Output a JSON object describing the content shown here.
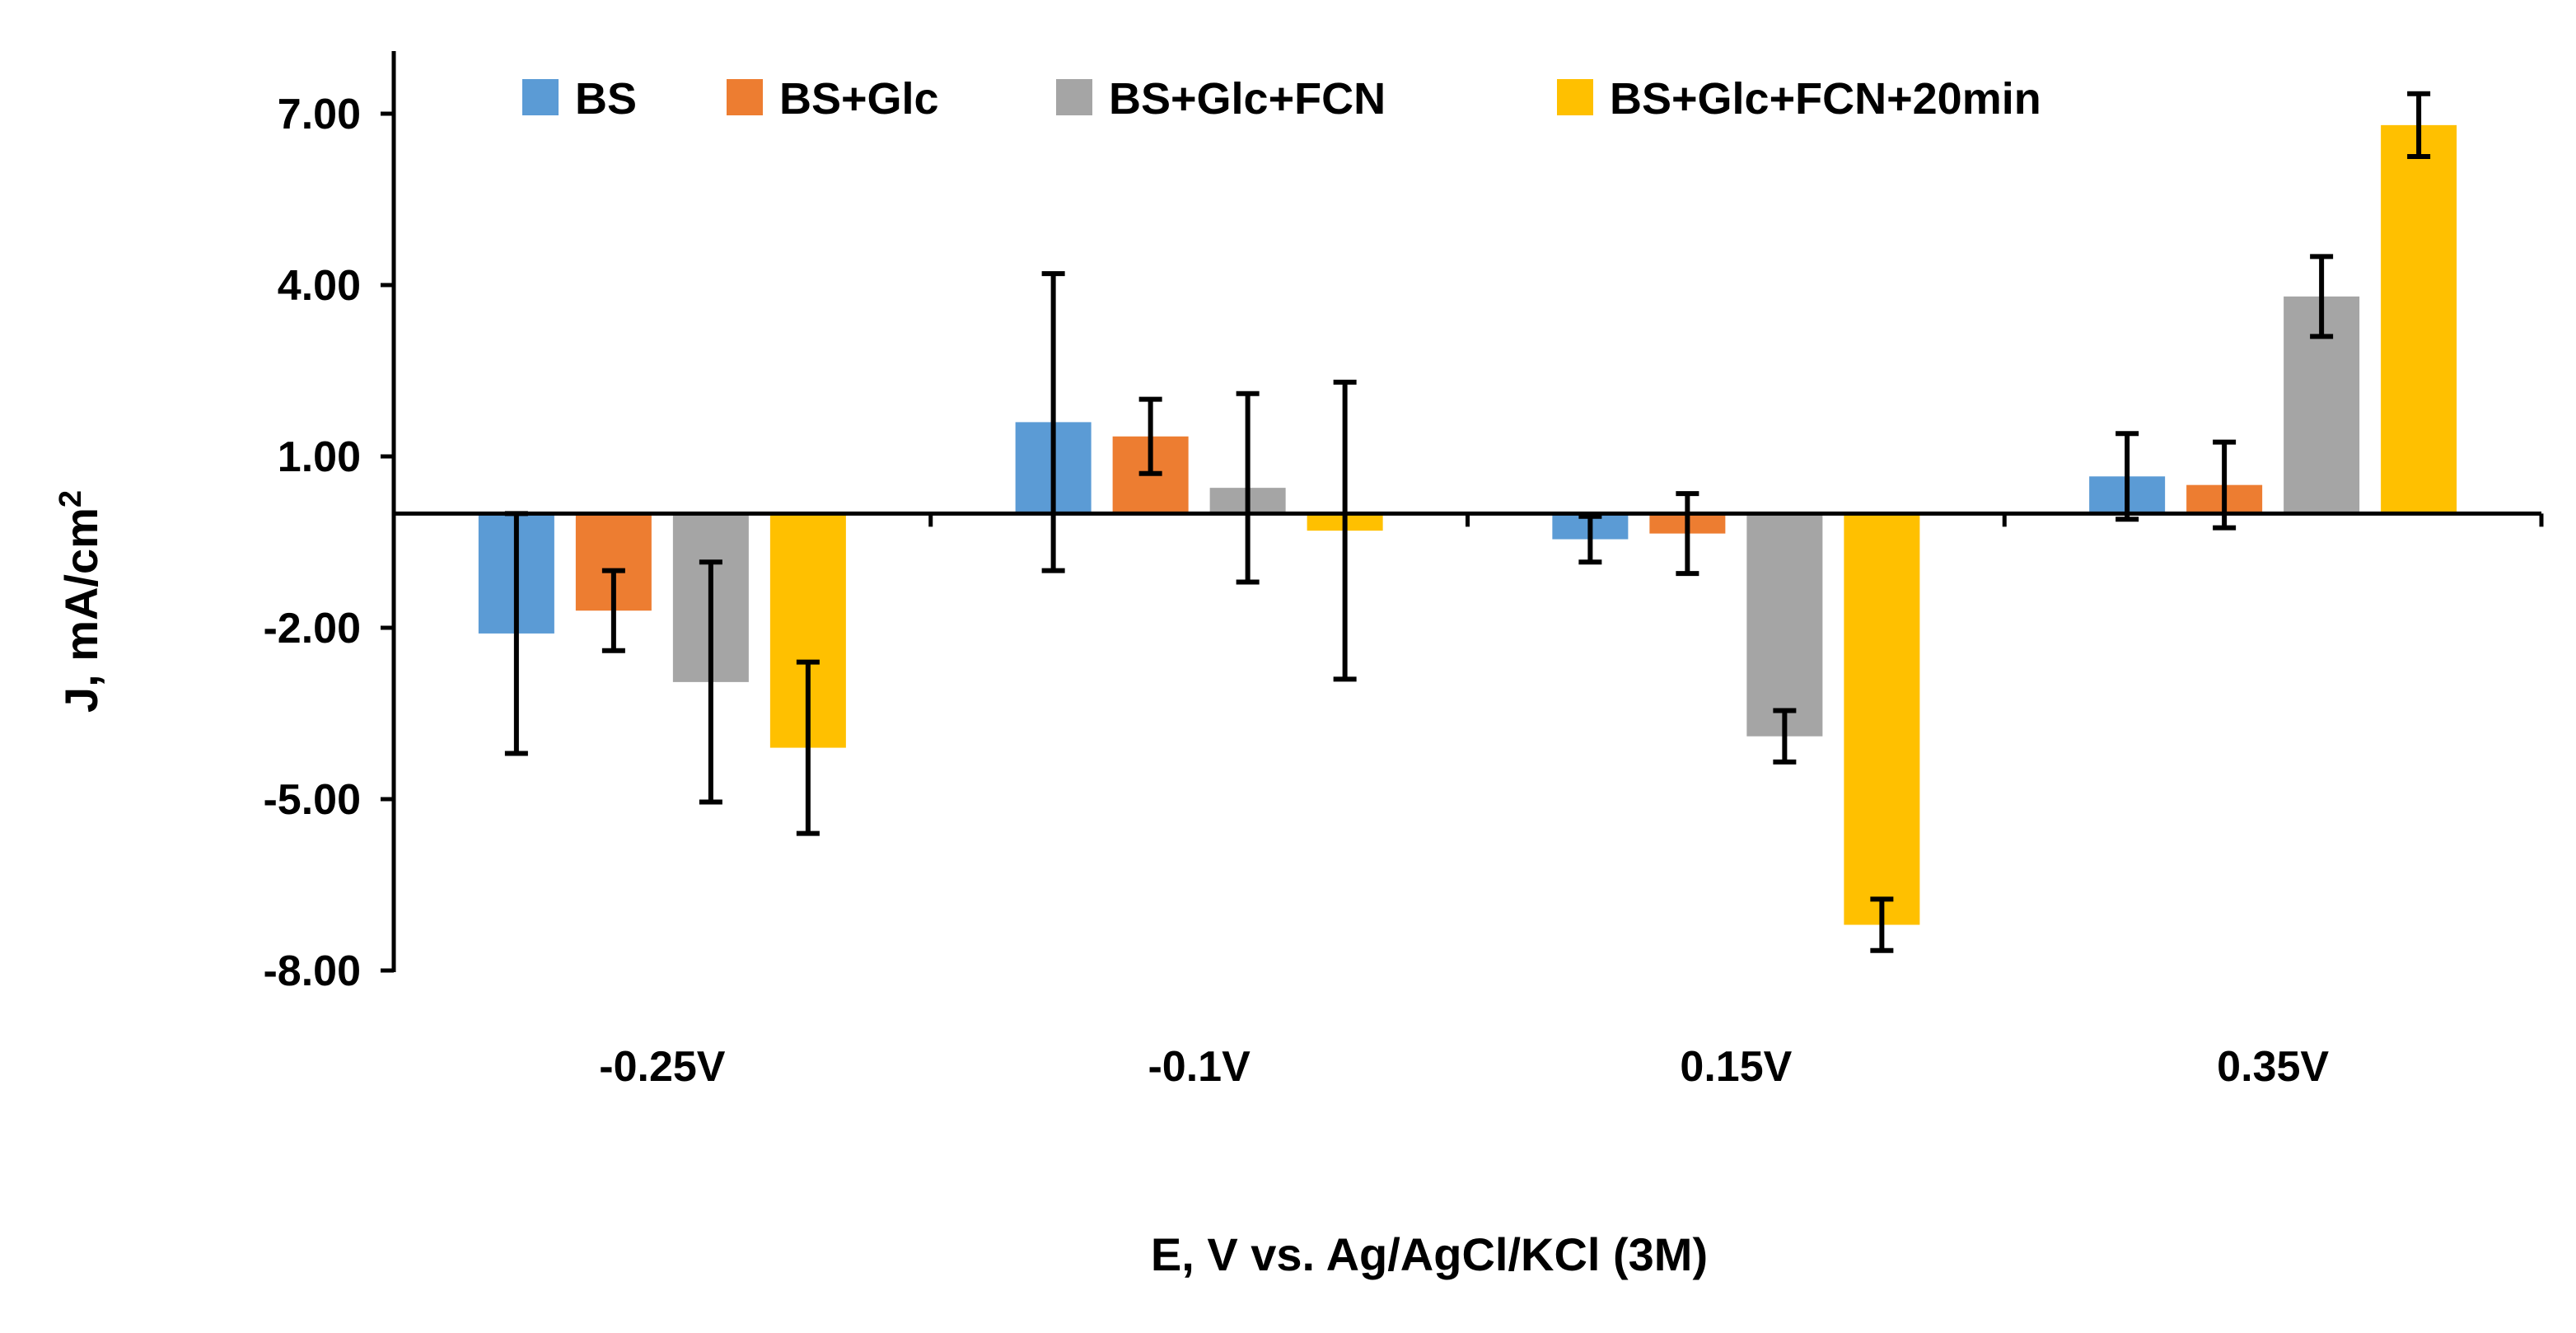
{
  "chart_data": {
    "type": "bar",
    "categories": [
      "-0.25V",
      "-0.1V",
      "0.15V",
      "0.35V"
    ],
    "series": [
      {
        "name": "BS",
        "color": "#5B9BD5",
        "values": [
          -2.1,
          1.6,
          -0.45,
          0.65
        ],
        "errors": [
          2.1,
          2.6,
          0.4,
          0.75
        ]
      },
      {
        "name": "BS+Glc",
        "color": "#ED7D31",
        "values": [
          -1.7,
          1.35,
          -0.35,
          0.5
        ],
        "errors": [
          0.7,
          0.65,
          0.7,
          0.75
        ]
      },
      {
        "name": "BS+Glc+FCN",
        "color": "#A5A5A5",
        "values": [
          -2.95,
          0.45,
          -3.9,
          3.8
        ],
        "errors": [
          2.1,
          1.65,
          0.45,
          0.7
        ]
      },
      {
        "name": "BS+Glc+FCN+20min",
        "color": "#FFC000",
        "values": [
          -4.1,
          -0.3,
          -7.2,
          6.8
        ],
        "errors": [
          1.5,
          2.6,
          0.45,
          0.55
        ]
      }
    ],
    "yticks": [
      "7.00",
      "4.00",
      "1.00",
      "-2.00",
      "-5.00",
      "-8.00"
    ],
    "ylim": [
      -8,
      7
    ],
    "ylabel": "J, mA/cm",
    "ylabel_superscript": "2",
    "xlabel": "E, V  vs. Ag/AgCl/KCl (3M)",
    "legend_position": "top"
  }
}
